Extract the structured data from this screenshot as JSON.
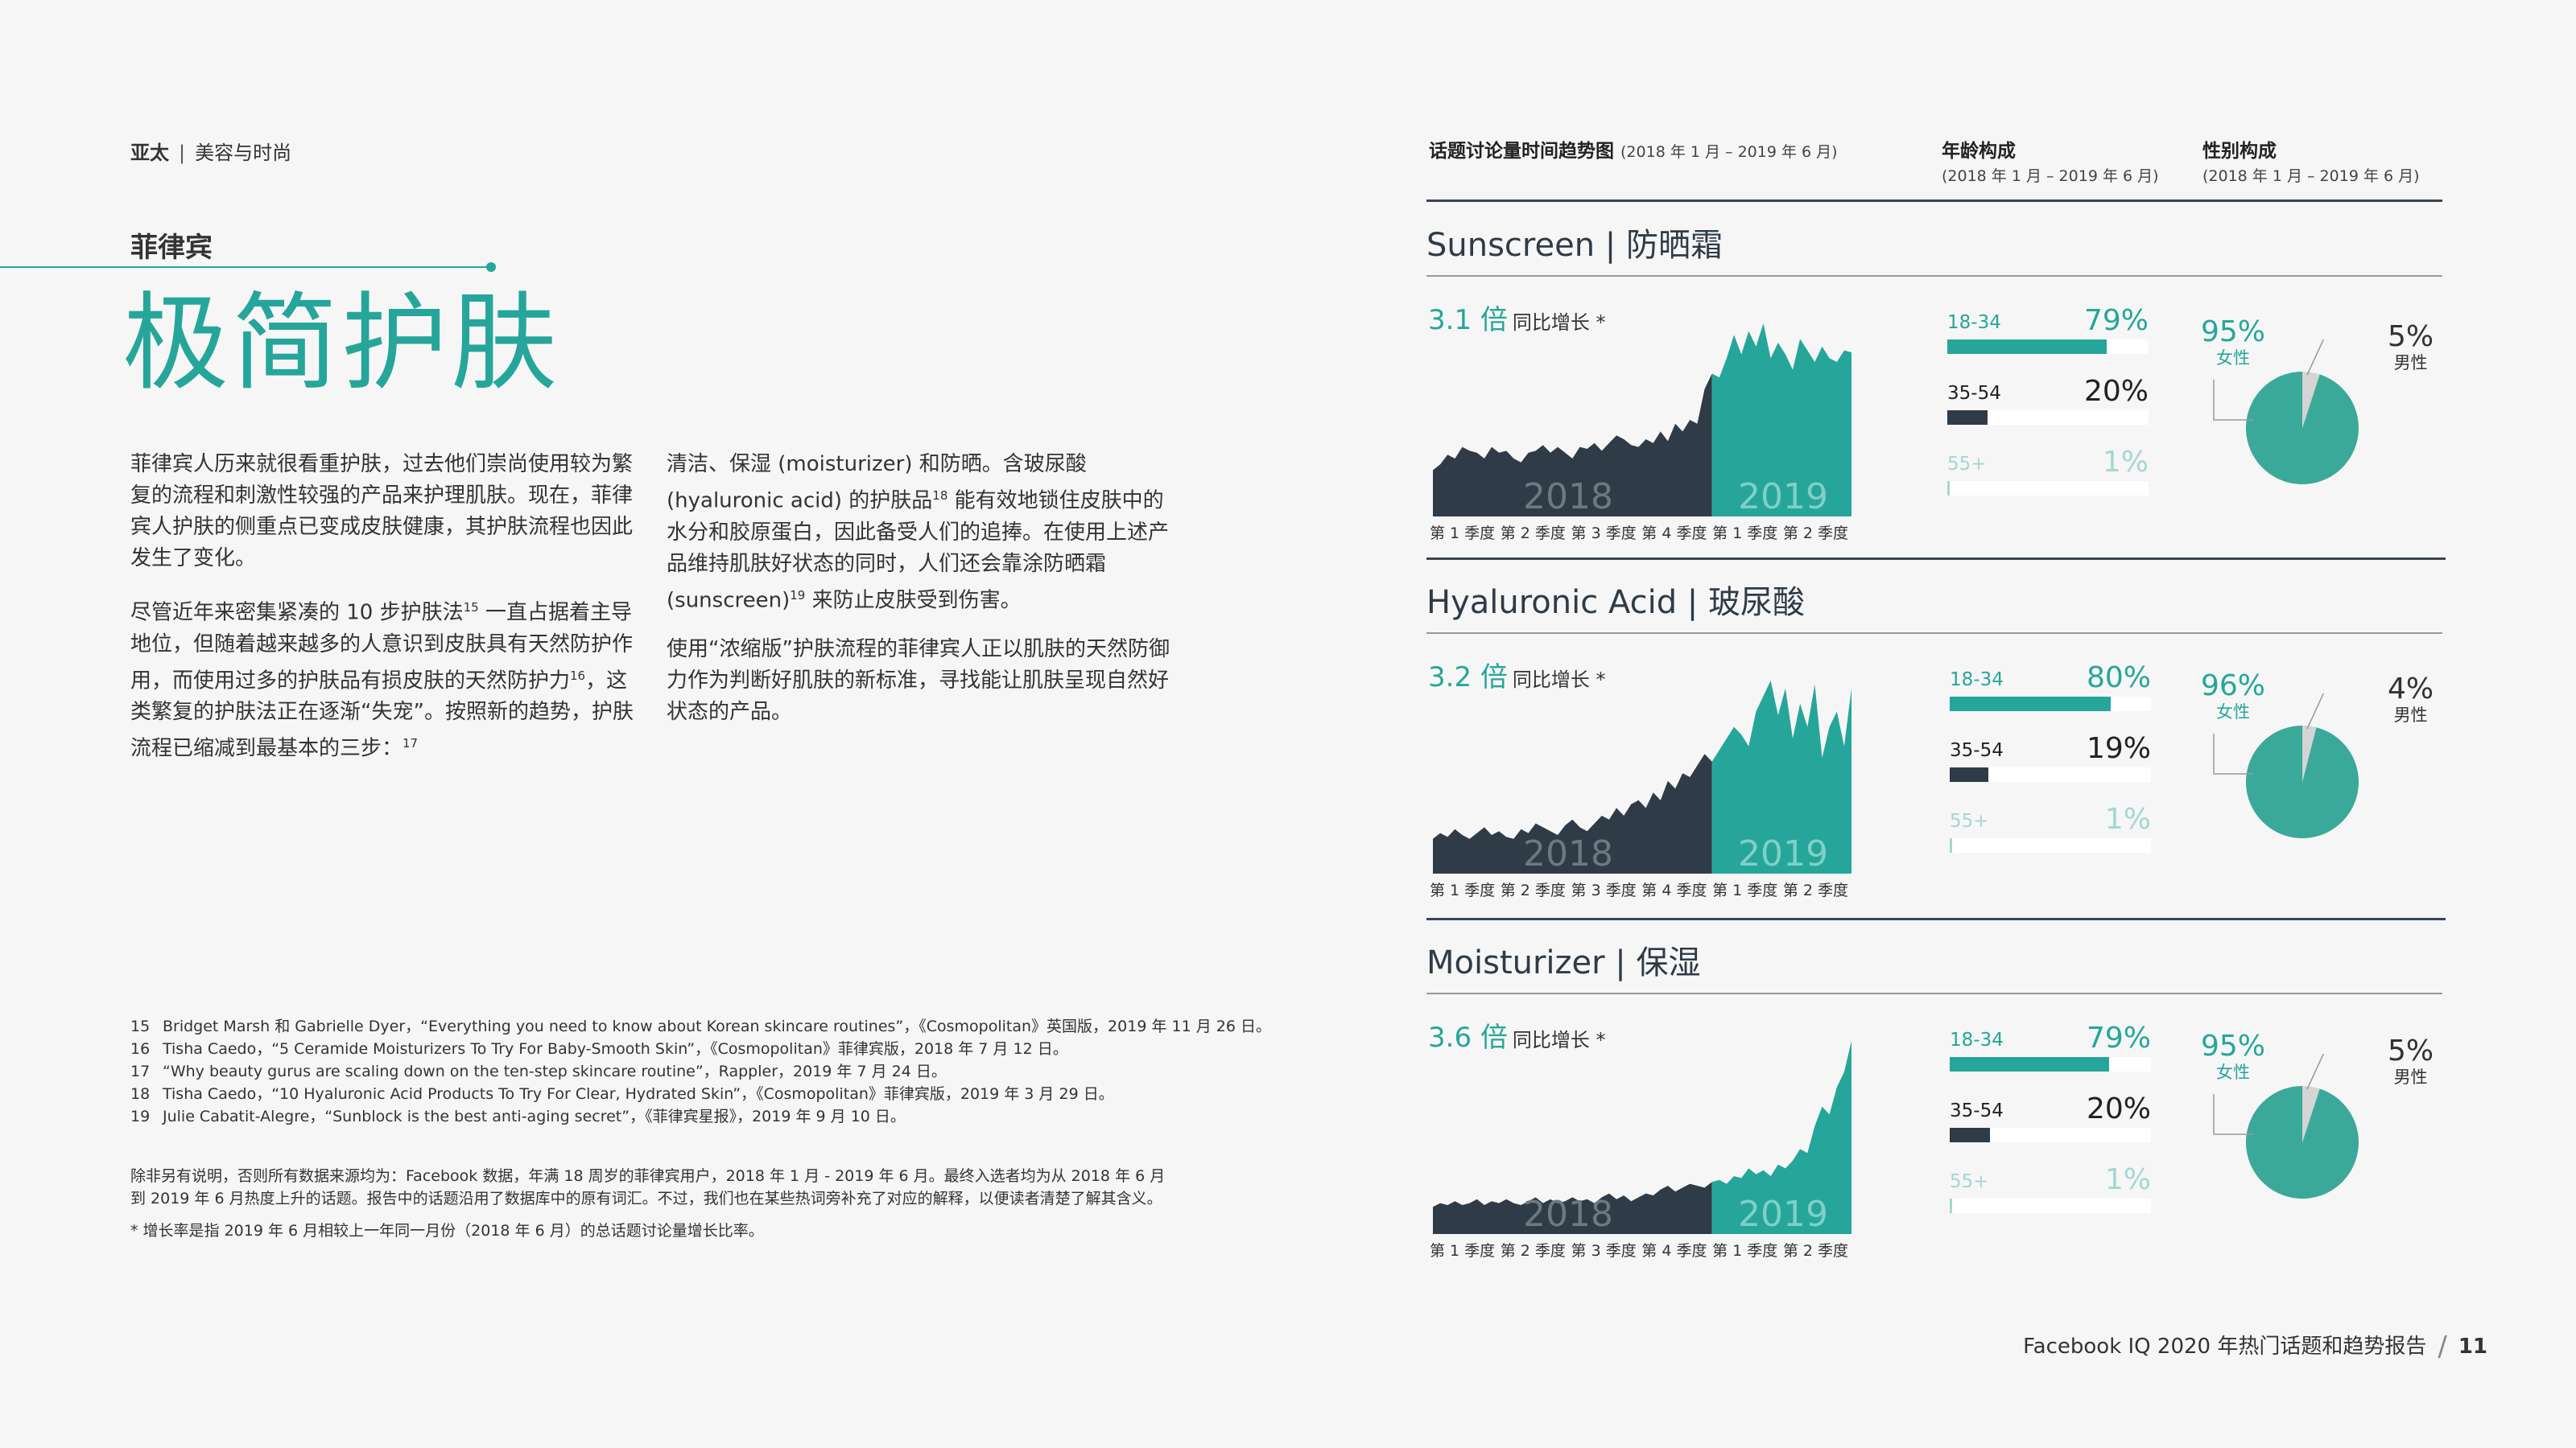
{
  "header": {
    "region": "亚太",
    "category": "美容与时尚"
  },
  "country": "菲律宾",
  "headline": "极简护肤",
  "body": {
    "p1": "菲律宾人历来就很看重护肤，过去他们崇尚使用较为繁复的流程和刺激性较强的产品来护理肌肤。现在，菲律宾人护肤的侧重点已变成皮肤健康，其护肤流程也因此发生了变化。",
    "p2_a": "尽管近年来密集紧凑的 10 步护肤法",
    "p2_ref1": "15",
    "p2_b": " 一直占据着主导地位，但随着越来越多的人意识到皮肤具有天然防护作用，而使用过多的护肤品有损皮肤的天然防护力",
    "p2_ref2": "16",
    "p2_c": "，这类繁复的护肤法正在逐渐“失宠”。按照新的趋势，护肤流程已缩减到最基本的三步：",
    "p2_ref3": "17",
    "p3_a": "清洁、保湿 (moisturizer) 和防晒。含玻尿酸 (hyaluronic acid) 的护肤品",
    "p3_ref1": "18",
    "p3_b": " 能有效地锁住皮肤中的水分和胶原蛋白，因此备受人们的追捧。在使用上述产品维持肌肤好状态的同时，人们还会靠涂防晒霜 (sunscreen)",
    "p3_ref2": "19",
    "p3_c": " 来防止皮肤受到伤害。",
    "p4": "使用“浓缩版”护肤流程的菲律宾人正以肌肤的天然防御力作为判断好肌肤的新标准，寻找能让肌肤呈现自然好状态的产品。"
  },
  "footnotes": [
    {
      "num": "15",
      "text": "Bridget Marsh 和 Gabrielle Dyer，“Everything you need to know about Korean skincare routines”，《Cosmopolitan》英国版，2019 年 11 月 26 日。"
    },
    {
      "num": "16",
      "text": "Tisha Caedo，“5 Ceramide Moisturizers To Try For Baby-Smooth Skin”，《Cosmopolitan》菲律宾版，2018 年 7 月 12 日。"
    },
    {
      "num": "17",
      "text": "“Why beauty gurus are scaling down on the ten-step skincare routine”，Rappler，2019 年 7 月 24 日。"
    },
    {
      "num": "18",
      "text": "Tisha Caedo，“10 Hyaluronic Acid Products To Try For Clear, Hydrated Skin”，《Cosmopolitan》菲律宾版，2019 年 3 月 29 日。"
    },
    {
      "num": "19",
      "text": "Julie Cabatit-Alegre，“Sunblock is the best anti-aging secret”，《菲律宾星报》，2019 年 9 月 10 日。"
    }
  ],
  "source_note": "除非另有说明，否则所有数据来源均为：Facebook 数据，年满 18 周岁的菲律宾用户，2018 年 1 月 - 2019 年 6 月。最终入选者均为从 2018 年 6 月到 2019 年 6 月热度上升的话题。报告中的话题沿用了数据库中的原有词汇。不过，我们也在某些热词旁补充了对应的解释，以便读者清楚了解其含义。",
  "growth_note": "* 增长率是指 2019 年 6 月相较上一年同一月份（2018 年 6 月）的总话题讨论量增长比率。",
  "panel": {
    "trend_header": "话题讨论量时间趋势图",
    "trend_period": "(2018 年 1 月 – 2019 年 6 月)",
    "age_header": "年龄构成",
    "age_period": "(2018 年 1 月 – 2019 年 6 月)",
    "gender_header": "性别构成",
    "gender_period": "(2018 年 1 月 – 2019 年 6 月)",
    "growth_suffix": "同比增长 *",
    "year_2018": "2018",
    "year_2019": "2019",
    "quarters": [
      "第 1 季度",
      "第 2 季度",
      "第 3 季度",
      "第 4 季度",
      "第 1 季度",
      "第 2 季度"
    ],
    "female_label": "女性",
    "male_label": "男性"
  },
  "colors": {
    "teal": "#26a69a",
    "dark": "#2f3b47",
    "teal_light": "#a3d8d2",
    "pie": "#3ba99a"
  },
  "chart_data": [
    {
      "type": "area",
      "title": "Sunscreen | 防晒霜",
      "growth": "3.1 倍",
      "trend": [
        24,
        27,
        32,
        30,
        36,
        34,
        33,
        30,
        36,
        33,
        34,
        30,
        28,
        33,
        34,
        37,
        33,
        36,
        33,
        30,
        36,
        35,
        38,
        34,
        38,
        42,
        40,
        37,
        36,
        40,
        38,
        44,
        39,
        48,
        44,
        50,
        48,
        66,
        74,
        72,
        82,
        94,
        84,
        96,
        88,
        100,
        82,
        90,
        84,
        76,
        92,
        86,
        80,
        88,
        82,
        80,
        86,
        85
      ],
      "age": [
        {
          "label": "18-34",
          "pct": "79%",
          "value": 79
        },
        {
          "label": "35-54",
          "pct": "20%",
          "value": 20
        },
        {
          "label": "55+",
          "pct": "1%",
          "value": 1
        }
      ],
      "gender": {
        "female_pct": "95%",
        "female": 95,
        "male_pct": "5%",
        "male": 5
      }
    },
    {
      "type": "area",
      "title": "Hyaluronic Acid | 玻尿酸",
      "growth": "3.2 倍",
      "trend": [
        18,
        21,
        19,
        23,
        20,
        18,
        21,
        24,
        20,
        22,
        19,
        18,
        23,
        21,
        26,
        24,
        22,
        20,
        25,
        28,
        24,
        22,
        26,
        30,
        28,
        34,
        30,
        36,
        38,
        34,
        42,
        38,
        48,
        44,
        52,
        50,
        56,
        62,
        58,
        64,
        70,
        76,
        72,
        66,
        84,
        92,
        100,
        82,
        96,
        70,
        88,
        76,
        98,
        60,
        76,
        84,
        66,
        96
      ],
      "age": [
        {
          "label": "18-34",
          "pct": "80%",
          "value": 80
        },
        {
          "label": "35-54",
          "pct": "19%",
          "value": 19
        },
        {
          "label": "55+",
          "pct": "1%",
          "value": 1
        }
      ],
      "gender": {
        "female_pct": "96%",
        "female": 96,
        "male_pct": "4%",
        "male": 4
      }
    },
    {
      "type": "area",
      "title": "Moisturizer | 保湿",
      "growth": "3.6 倍",
      "trend": [
        14,
        16,
        15,
        17,
        15,
        16,
        18,
        15,
        17,
        16,
        18,
        16,
        15,
        17,
        19,
        16,
        18,
        16,
        17,
        19,
        17,
        18,
        16,
        19,
        21,
        18,
        20,
        17,
        19,
        21,
        20,
        23,
        25,
        22,
        24,
        26,
        25,
        24,
        27,
        28,
        26,
        30,
        29,
        34,
        31,
        33,
        30,
        36,
        34,
        38,
        44,
        42,
        56,
        66,
        62,
        76,
        84,
        100
      ],
      "age": [
        {
          "label": "18-34",
          "pct": "79%",
          "value": 79
        },
        {
          "label": "35-54",
          "pct": "20%",
          "value": 20
        },
        {
          "label": "55+",
          "pct": "1%",
          "value": 1
        }
      ],
      "gender": {
        "female_pct": "95%",
        "female": 95,
        "male_pct": "5%",
        "male": 5
      }
    }
  ],
  "footer": {
    "report_title": "Facebook IQ 2020 年热门话题和趋势报告",
    "page_number": "11"
  }
}
